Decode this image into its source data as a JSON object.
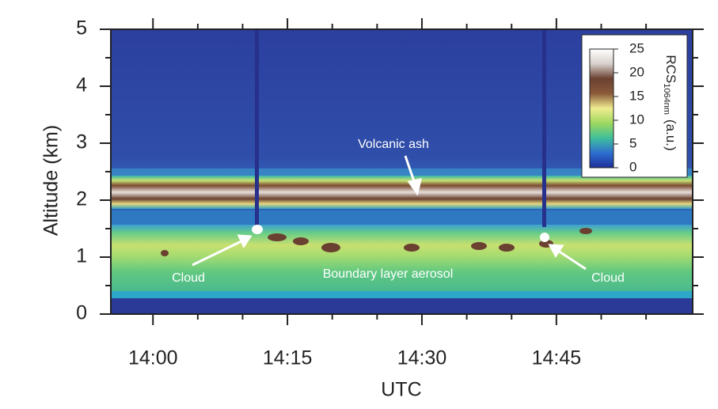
{
  "chart_data": {
    "type": "heatmap",
    "x_label": "UTC",
    "y_label": "Altitude (km)",
    "xlim": [
      835.3,
      900.2
    ],
    "xticks": [
      {
        "value": 840,
        "label": "14:00"
      },
      {
        "value": 855,
        "label": "14:15"
      },
      {
        "value": 870,
        "label": "14:30"
      },
      {
        "value": 885,
        "label": "14:45"
      }
    ],
    "xminorticks": [
      845,
      850,
      860,
      865,
      875,
      880,
      890,
      895
    ],
    "ylim": [
      0,
      5
    ],
    "yticks": [
      0,
      1,
      2,
      3,
      4,
      5
    ],
    "yminorticks": [
      0.5,
      1.5,
      2.5,
      3.5,
      4.5
    ],
    "colorbar": {
      "label": "RCS",
      "label_sub": "1064nm",
      "units": "(a.u.)",
      "lim": [
        0,
        25
      ],
      "ticks": [
        0,
        5,
        10,
        15,
        20,
        25
      ],
      "colors": [
        "#1f2f9a",
        "#2e6fd0",
        "#3fbf9a",
        "#9fd860",
        "#f0ec90",
        "#8a5a3a",
        "#6a4030",
        "#d8d0cc",
        "#ffffff"
      ]
    },
    "annotations": [
      "Volcanic ash",
      "Cloud",
      "Boundary layer aerosol",
      "Cloud"
    ]
  }
}
